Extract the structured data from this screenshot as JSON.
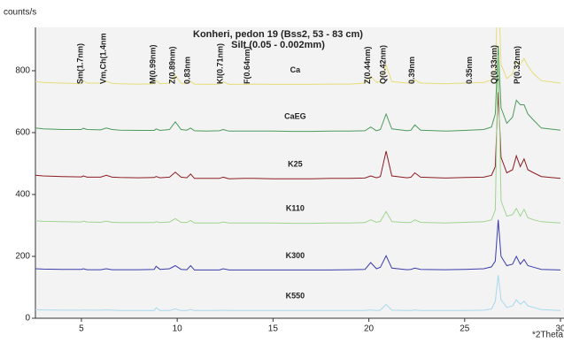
{
  "chart_data": {
    "type": "line",
    "title": "Konheri, pedon 19 (Bss2, 53 - 83 cm)",
    "subtitle": "Silt (0.05 - 0.002mm)",
    "y_label": "counts/s",
    "x_label": "*2Theta",
    "x": [
      2.6,
      3,
      4,
      5,
      5.1,
      5.3,
      6,
      6.3,
      6.6,
      7,
      8,
      8.8,
      8.9,
      9.1,
      9.6,
      9.9,
      10.2,
      10.5,
      10.7,
      10.9,
      11.5,
      12.2,
      12.4,
      12.7,
      13.5,
      14,
      15,
      16,
      17,
      18,
      19,
      19.8,
      20.1,
      20.4,
      20.6,
      20.9,
      21.2,
      22,
      22.2,
      22.4,
      22.7,
      24,
      25,
      26,
      26.4,
      26.6,
      26.75,
      26.9,
      27.2,
      27.5,
      27.7,
      27.9,
      28.1,
      28.3,
      28.6,
      29,
      30
    ],
    "series": [
      {
        "name": "Ca",
        "color": "#e6dc78",
        "values": [
          765,
          762,
          760,
          758,
          768,
          760,
          760,
          766,
          759,
          758,
          757,
          758,
          768,
          758,
          760,
          785,
          760,
          758,
          766,
          757,
          756,
          757,
          764,
          756,
          756,
          757,
          756,
          756,
          756,
          757,
          757,
          760,
          782,
          762,
          765,
          818,
          765,
          760,
          760,
          770,
          760,
          758,
          760,
          762,
          770,
          800,
          1100,
          820,
          775,
          790,
          830,
          820,
          840,
          815,
          790,
          768,
          760
        ]
      },
      {
        "name": "CaEG",
        "color": "#4c9a5c",
        "values": [
          615,
          612,
          610,
          610,
          614,
          610,
          609,
          615,
          610,
          608,
          607,
          607,
          612,
          607,
          610,
          635,
          610,
          608,
          615,
          606,
          605,
          606,
          610,
          605,
          605,
          605,
          605,
          604,
          604,
          605,
          605,
          606,
          618,
          606,
          610,
          660,
          612,
          606,
          608,
          625,
          608,
          605,
          607,
          610,
          618,
          660,
          880,
          680,
          630,
          650,
          705,
          690,
          690,
          660,
          640,
          615,
          608
        ]
      },
      {
        "name": "K25",
        "color": "#8c1c22",
        "values": [
          462,
          460,
          458,
          457,
          460,
          456,
          456,
          462,
          456,
          455,
          454,
          455,
          458,
          454,
          456,
          472,
          456,
          454,
          466,
          452,
          452,
          452,
          456,
          451,
          452,
          452,
          451,
          451,
          451,
          452,
          452,
          453,
          460,
          454,
          458,
          540,
          460,
          454,
          456,
          470,
          456,
          453,
          455,
          456,
          462,
          490,
          730,
          520,
          470,
          480,
          525,
          490,
          515,
          480,
          470,
          458,
          452
        ]
      },
      {
        "name": "K110",
        "color": "#a0d490",
        "values": [
          315,
          313,
          312,
          311,
          314,
          311,
          310,
          314,
          310,
          309,
          309,
          309,
          312,
          309,
          311,
          322,
          310,
          309,
          316,
          308,
          308,
          308,
          311,
          308,
          308,
          308,
          308,
          307,
          307,
          308,
          308,
          309,
          318,
          310,
          313,
          345,
          312,
          309,
          310,
          318,
          310,
          308,
          310,
          312,
          318,
          350,
          850,
          380,
          330,
          335,
          355,
          330,
          352,
          325,
          318,
          312,
          308
        ]
      },
      {
        "name": "K300",
        "color": "#3a3caa",
        "values": [
          160,
          159,
          158,
          158,
          160,
          157,
          157,
          160,
          157,
          157,
          157,
          158,
          168,
          158,
          160,
          170,
          158,
          157,
          170,
          156,
          156,
          156,
          160,
          156,
          156,
          156,
          156,
          156,
          156,
          156,
          157,
          158,
          180,
          160,
          165,
          202,
          162,
          157,
          158,
          162,
          158,
          157,
          158,
          160,
          166,
          185,
          318,
          200,
          170,
          175,
          200,
          175,
          190,
          170,
          165,
          158,
          156
        ]
      },
      {
        "name": "K550",
        "color": "#a8d8ee",
        "values": [
          28,
          27,
          26,
          26,
          27,
          26,
          26,
          27,
          26,
          25,
          25,
          25,
          34,
          25,
          25,
          30,
          25,
          25,
          28,
          25,
          25,
          25,
          26,
          25,
          25,
          25,
          25,
          25,
          25,
          25,
          25,
          25,
          27,
          25,
          26,
          45,
          26,
          25,
          25,
          27,
          25,
          25,
          25,
          26,
          30,
          55,
          140,
          60,
          35,
          40,
          60,
          45,
          55,
          40,
          35,
          28,
          25
        ]
      }
    ],
    "annotations": [
      {
        "text": "Sm(1.7nm)",
        "x": 5.1
      },
      {
        "text": "Vm,Ch(1.4nm",
        "x": 6.3
      },
      {
        "text": "M(0.99nm)",
        "x": 8.9
      },
      {
        "text": "Z(0.89nm)",
        "x": 9.9
      },
      {
        "text": "0.83nm",
        "x": 10.7
      },
      {
        "text": "Kl(0.71nm)",
        "x": 12.4
      },
      {
        "text": "F(0.64nm)",
        "x": 13.8
      },
      {
        "text": "Z(0.44nm)",
        "x": 20.1
      },
      {
        "text": "Q(0.42nm)",
        "x": 20.9
      },
      {
        "text": "0.39nm",
        "x": 22.4
      },
      {
        "text": "0.35nm",
        "x": 25.4
      },
      {
        "text": "Q(0.33nm)",
        "x": 26.7
      },
      {
        "text": "P(0.32nm)",
        "x": 27.9
      }
    ],
    "xlim": [
      2.6,
      30
    ],
    "xticks": [
      5,
      10,
      15,
      20,
      25,
      30
    ],
    "ylim": [
      0,
      940
    ],
    "yticks": [
      0,
      200,
      400,
      600,
      800
    ]
  }
}
